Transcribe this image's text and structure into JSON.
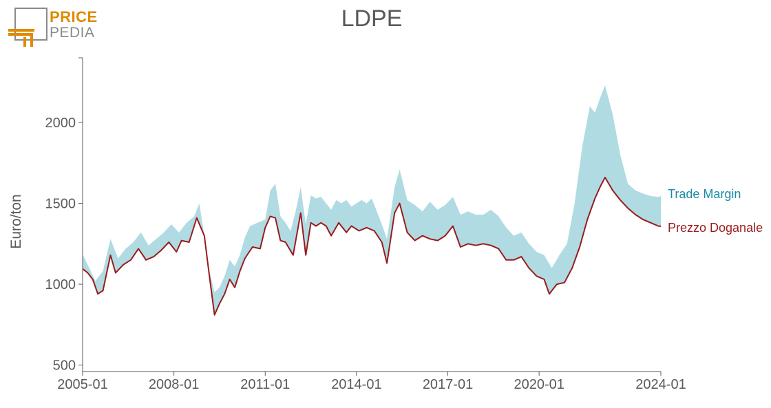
{
  "logo": {
    "line1": "PRICE",
    "line2": "PEDIA",
    "accent": "#e08a00",
    "grey": "#8a8a8a"
  },
  "chart_data": {
    "type": "area",
    "title": "LDPE",
    "ylabel": "Euro/ton",
    "xlabel": "",
    "x_ticks": [
      "2005-01",
      "2008-01",
      "2011-01",
      "2014-01",
      "2017-01",
      "2020-01",
      "2024-01"
    ],
    "y_ticks": [
      500,
      1000,
      1500,
      2000
    ],
    "xlim": [
      "2005-01",
      "2024-01"
    ],
    "ylim": [
      460,
      2400
    ],
    "series": [
      {
        "name": "Trade Margin",
        "role": "band-upper",
        "color": "#b0dbe3",
        "label_color": "#1a8aa6",
        "points": [
          [
            "2005-01",
            1185
          ],
          [
            "2005-03",
            1120
          ],
          [
            "2005-06",
            1020
          ],
          [
            "2005-09",
            1080
          ],
          [
            "2005-12",
            1280
          ],
          [
            "2006-03",
            1160
          ],
          [
            "2006-06",
            1220
          ],
          [
            "2006-09",
            1260
          ],
          [
            "2006-12",
            1320
          ],
          [
            "2007-03",
            1240
          ],
          [
            "2007-06",
            1280
          ],
          [
            "2007-09",
            1320
          ],
          [
            "2007-12",
            1370
          ],
          [
            "2008-03",
            1320
          ],
          [
            "2008-06",
            1380
          ],
          [
            "2008-09",
            1420
          ],
          [
            "2008-11",
            1500
          ],
          [
            "2009-01",
            1300
          ],
          [
            "2009-03",
            1080
          ],
          [
            "2009-05",
            950
          ],
          [
            "2009-07",
            980
          ],
          [
            "2009-09",
            1050
          ],
          [
            "2009-11",
            1150
          ],
          [
            "2010-01",
            1110
          ],
          [
            "2010-03",
            1180
          ],
          [
            "2010-05",
            1290
          ],
          [
            "2010-07",
            1360
          ],
          [
            "2010-10",
            1380
          ],
          [
            "2011-01",
            1400
          ],
          [
            "2011-03",
            1580
          ],
          [
            "2011-05",
            1620
          ],
          [
            "2011-07",
            1420
          ],
          [
            "2011-09",
            1380
          ],
          [
            "2011-11",
            1330
          ],
          [
            "2012-01",
            1450
          ],
          [
            "2012-03",
            1600
          ],
          [
            "2012-05",
            1370
          ],
          [
            "2012-07",
            1550
          ],
          [
            "2012-09",
            1530
          ],
          [
            "2012-11",
            1540
          ],
          [
            "2013-01",
            1500
          ],
          [
            "2013-03",
            1460
          ],
          [
            "2013-05",
            1520
          ],
          [
            "2013-07",
            1500
          ],
          [
            "2013-09",
            1520
          ],
          [
            "2013-11",
            1480
          ],
          [
            "2014-01",
            1500
          ],
          [
            "2014-03",
            1520
          ],
          [
            "2014-05",
            1500
          ],
          [
            "2014-07",
            1530
          ],
          [
            "2014-09",
            1450
          ],
          [
            "2014-11",
            1370
          ],
          [
            "2015-01",
            1280
          ],
          [
            "2015-04",
            1600
          ],
          [
            "2015-06",
            1710
          ],
          [
            "2015-09",
            1520
          ],
          [
            "2015-12",
            1490
          ],
          [
            "2016-03",
            1450
          ],
          [
            "2016-06",
            1510
          ],
          [
            "2016-09",
            1460
          ],
          [
            "2016-12",
            1490
          ],
          [
            "2017-03",
            1540
          ],
          [
            "2017-06",
            1430
          ],
          [
            "2017-09",
            1450
          ],
          [
            "2017-12",
            1430
          ],
          [
            "2018-03",
            1430
          ],
          [
            "2018-06",
            1460
          ],
          [
            "2018-09",
            1420
          ],
          [
            "2018-12",
            1350
          ],
          [
            "2019-03",
            1300
          ],
          [
            "2019-06",
            1320
          ],
          [
            "2019-09",
            1250
          ],
          [
            "2019-12",
            1200
          ],
          [
            "2020-03",
            1180
          ],
          [
            "2020-06",
            1100
          ],
          [
            "2020-09",
            1180
          ],
          [
            "2020-12",
            1250
          ],
          [
            "2021-03",
            1500
          ],
          [
            "2021-06",
            1850
          ],
          [
            "2021-09",
            2100
          ],
          [
            "2021-11",
            2060
          ],
          [
            "2022-01",
            2150
          ],
          [
            "2022-03",
            2230
          ],
          [
            "2022-06",
            2050
          ],
          [
            "2022-09",
            1800
          ],
          [
            "2022-12",
            1620
          ],
          [
            "2023-03",
            1580
          ],
          [
            "2023-06",
            1560
          ],
          [
            "2023-09",
            1545
          ],
          [
            "2023-12",
            1540
          ],
          [
            "2024-01",
            1545
          ]
        ]
      },
      {
        "name": "Prezzo Doganale",
        "role": "line",
        "color": "#9a1b1b",
        "label_color": "#9a1b1b",
        "points": [
          [
            "2005-01",
            1095
          ],
          [
            "2005-03",
            1070
          ],
          [
            "2005-05",
            1030
          ],
          [
            "2005-07",
            940
          ],
          [
            "2005-09",
            960
          ],
          [
            "2005-12",
            1180
          ],
          [
            "2006-02",
            1070
          ],
          [
            "2006-05",
            1120
          ],
          [
            "2006-08",
            1150
          ],
          [
            "2006-11",
            1220
          ],
          [
            "2007-02",
            1150
          ],
          [
            "2007-05",
            1170
          ],
          [
            "2007-08",
            1210
          ],
          [
            "2007-11",
            1260
          ],
          [
            "2008-02",
            1200
          ],
          [
            "2008-04",
            1270
          ],
          [
            "2008-07",
            1260
          ],
          [
            "2008-10",
            1410
          ],
          [
            "2009-01",
            1300
          ],
          [
            "2009-03",
            1050
          ],
          [
            "2009-05",
            810
          ],
          [
            "2009-07",
            880
          ],
          [
            "2009-09",
            940
          ],
          [
            "2009-11",
            1030
          ],
          [
            "2010-01",
            980
          ],
          [
            "2010-03",
            1080
          ],
          [
            "2010-05",
            1160
          ],
          [
            "2010-08",
            1230
          ],
          [
            "2010-11",
            1220
          ],
          [
            "2011-01",
            1350
          ],
          [
            "2011-03",
            1420
          ],
          [
            "2011-05",
            1410
          ],
          [
            "2011-07",
            1270
          ],
          [
            "2011-09",
            1260
          ],
          [
            "2011-12",
            1180
          ],
          [
            "2012-03",
            1440
          ],
          [
            "2012-05",
            1180
          ],
          [
            "2012-07",
            1380
          ],
          [
            "2012-09",
            1360
          ],
          [
            "2012-11",
            1380
          ],
          [
            "2013-01",
            1360
          ],
          [
            "2013-03",
            1300
          ],
          [
            "2013-06",
            1380
          ],
          [
            "2013-09",
            1320
          ],
          [
            "2013-11",
            1360
          ],
          [
            "2014-02",
            1330
          ],
          [
            "2014-05",
            1350
          ],
          [
            "2014-08",
            1330
          ],
          [
            "2014-11",
            1260
          ],
          [
            "2015-01",
            1130
          ],
          [
            "2015-04",
            1440
          ],
          [
            "2015-06",
            1500
          ],
          [
            "2015-09",
            1320
          ],
          [
            "2015-12",
            1270
          ],
          [
            "2016-03",
            1300
          ],
          [
            "2016-06",
            1280
          ],
          [
            "2016-09",
            1270
          ],
          [
            "2016-12",
            1300
          ],
          [
            "2017-03",
            1360
          ],
          [
            "2017-06",
            1230
          ],
          [
            "2017-09",
            1250
          ],
          [
            "2017-12",
            1240
          ],
          [
            "2018-03",
            1250
          ],
          [
            "2018-06",
            1240
          ],
          [
            "2018-09",
            1220
          ],
          [
            "2018-12",
            1150
          ],
          [
            "2019-03",
            1150
          ],
          [
            "2019-06",
            1170
          ],
          [
            "2019-09",
            1100
          ],
          [
            "2019-12",
            1050
          ],
          [
            "2020-03",
            1030
          ],
          [
            "2020-05",
            940
          ],
          [
            "2020-08",
            1000
          ],
          [
            "2020-11",
            1010
          ],
          [
            "2021-02",
            1100
          ],
          [
            "2021-05",
            1230
          ],
          [
            "2021-08",
            1400
          ],
          [
            "2021-11",
            1530
          ],
          [
            "2022-01",
            1600
          ],
          [
            "2022-03",
            1660
          ],
          [
            "2022-06",
            1580
          ],
          [
            "2022-09",
            1520
          ],
          [
            "2022-12",
            1470
          ],
          [
            "2023-03",
            1430
          ],
          [
            "2023-06",
            1400
          ],
          [
            "2023-09",
            1380
          ],
          [
            "2023-12",
            1360
          ],
          [
            "2024-01",
            1358
          ]
        ]
      }
    ],
    "baseline_color": "#5a5a5a"
  }
}
